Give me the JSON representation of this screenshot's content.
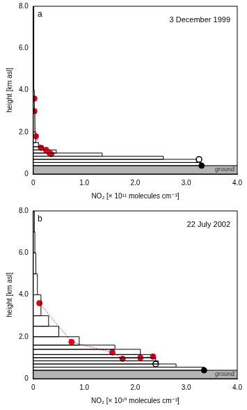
{
  "chart_data": [
    {
      "type": "profile",
      "title": "3 December 1999",
      "annotations": [
        "a"
      ],
      "xlabel": "NO₂ [× 10¹¹ molecules cm⁻³]",
      "ylabel": "height [km asl]",
      "xlim": [
        0,
        4
      ],
      "ylim": [
        0,
        8
      ],
      "xticks": [
        0,
        {
          "value": 1,
          "label": "1.0"
        },
        {
          "value": 2,
          "label": "2.0"
        },
        {
          "value": 3,
          "label": "3.0"
        },
        {
          "value": 4,
          "label": "4.0"
        }
      ],
      "yticks": [
        0,
        {
          "value": 2,
          "label": "2.0"
        },
        {
          "value": 4,
          "label": "4.0"
        },
        {
          "value": 6,
          "label": "6.0"
        },
        {
          "value": 8,
          "label": "8.0"
        }
      ],
      "grid": false,
      "ground": {
        "label": "ground",
        "ylim": [
          0,
          0.4
        ],
        "color": "#b4b4b4"
      },
      "layers": {
        "bins": [
          0.4,
          0.55,
          0.7,
          0.85,
          1.0,
          1.15,
          1.3,
          1.5,
          2.0,
          3.0,
          4.0,
          8.0
        ],
        "values": [
          3.3,
          3.2,
          2.55,
          1.35,
          0.45,
          0.2,
          0.1,
          0.05,
          0.03,
          0.02,
          0.01
        ],
        "color": "#000000"
      },
      "series": [
        {
          "type": "scatter",
          "marker": "circle",
          "line_style": "dotted",
          "color": "#e0001b",
          "x": [
            0.02,
            0.02,
            0.05,
            0.15,
            0.25,
            0.32,
            0.35
          ],
          "y": [
            3.6,
            3.0,
            1.8,
            1.25,
            1.15,
            1.0,
            0.95
          ]
        },
        {
          "type": "scatter",
          "marker": "open_circle",
          "color": "#000000",
          "x": [
            3.25
          ],
          "y": [
            0.7
          ]
        },
        {
          "type": "scatter",
          "marker": "circle",
          "color": "#000000",
          "x": [
            3.3
          ],
          "y": [
            0.4
          ]
        }
      ]
    },
    {
      "type": "profile",
      "title": "22 July 2002",
      "annotations": [
        "b"
      ],
      "xlabel": "NO₂ [× 10¹⁰ molecules cm⁻³]",
      "ylabel": "height [km asl]",
      "xlim": [
        0,
        4
      ],
      "ylim": [
        0,
        8
      ],
      "xticks": [
        0,
        {
          "value": 1,
          "label": "1.0"
        },
        {
          "value": 2,
          "label": "2.0"
        },
        {
          "value": 3,
          "label": "3.0"
        },
        {
          "value": 4,
          "label": "4.0"
        }
      ],
      "yticks": [
        0,
        {
          "value": 2,
          "label": "2.0"
        },
        {
          "value": 4,
          "label": "4.0"
        },
        {
          "value": 6,
          "label": "6.0"
        },
        {
          "value": 8,
          "label": "8.0"
        }
      ],
      "grid": false,
      "ground": {
        "label": "ground",
        "ylim": [
          0,
          0.4
        ],
        "color": "#b4b4b4"
      },
      "layers": {
        "bins": [
          0.4,
          0.55,
          0.7,
          0.85,
          1.0,
          1.15,
          1.4,
          1.6,
          2.0,
          2.5,
          3.0,
          4.0,
          5.0,
          6.0,
          7.0,
          8.0
        ],
        "values": [
          3.35,
          2.8,
          2.45,
          2.4,
          2.35,
          2.1,
          1.6,
          0.9,
          0.5,
          0.3,
          0.15,
          0.08,
          0.05,
          0.03,
          0.02
        ],
        "color": "#000000"
      },
      "series": [
        {
          "type": "scatter",
          "marker": "circle",
          "line_style": "dotted",
          "color": "#e0001b",
          "x": [
            0.12,
            0.75,
            1.55,
            1.75,
            2.1,
            2.35
          ],
          "y": [
            3.6,
            1.75,
            1.25,
            0.95,
            1.0,
            1.05
          ]
        },
        {
          "type": "scatter",
          "marker": "open_circle",
          "color": "#000000",
          "x": [
            2.4
          ],
          "y": [
            0.7
          ]
        },
        {
          "type": "scatter",
          "marker": "circle",
          "color": "#000000",
          "x": [
            3.35
          ],
          "y": [
            0.4
          ]
        }
      ]
    }
  ]
}
